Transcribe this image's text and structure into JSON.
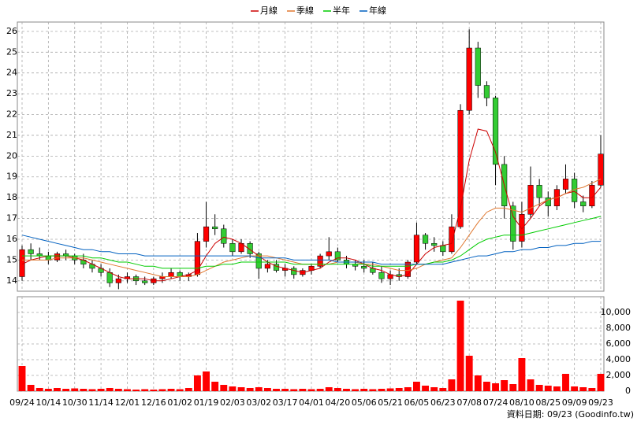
{
  "chart_data": [
    {
      "type": "candlestick",
      "categories": [
        "09/24",
        null,
        null,
        "10/14",
        null,
        null,
        "10/30",
        null,
        null,
        "11/14",
        null,
        null,
        "12/01",
        null,
        null,
        "12/16",
        null,
        null,
        "01/02",
        null,
        null,
        "01/19",
        null,
        null,
        "02/03",
        null,
        null,
        "03/02",
        null,
        null,
        "03/17",
        null,
        null,
        "04/01",
        null,
        null,
        "04/20",
        null,
        null,
        "05/06",
        null,
        null,
        "05/21",
        null,
        null,
        "06/05",
        null,
        null,
        "06/23",
        null,
        null,
        "07/08",
        null,
        null,
        "07/24",
        null,
        null,
        "08/10",
        null,
        null,
        "08/25",
        null,
        null,
        "09/09",
        null,
        null,
        "09/23"
      ],
      "open": [
        14.2,
        15.5,
        15.3,
        15.2,
        15.0,
        15.3,
        15.2,
        15.0,
        14.8,
        14.6,
        14.4,
        13.9,
        14.1,
        14.2,
        14.0,
        13.9,
        14.1,
        14.2,
        14.4,
        14.2,
        14.3,
        15.9,
        16.6,
        16.5,
        15.8,
        15.4,
        15.8,
        15.3,
        14.6,
        14.8,
        14.5,
        14.6,
        14.3,
        14.5,
        14.7,
        15.2,
        15.4,
        15.0,
        14.8,
        14.7,
        14.6,
        14.4,
        14.1,
        14.3,
        14.2,
        14.9,
        16.2,
        15.8,
        15.7,
        15.4,
        16.6,
        22.2,
        25.2,
        23.4,
        22.8,
        19.6,
        17.6,
        15.9,
        17.2,
        18.6,
        18.0,
        17.6,
        18.4,
        18.9,
        17.8,
        17.6,
        18.6
      ],
      "high": [
        15.7,
        15.8,
        15.6,
        15.4,
        15.4,
        15.5,
        15.3,
        15.3,
        15.0,
        14.8,
        14.6,
        14.3,
        14.4,
        14.3,
        14.2,
        14.2,
        14.4,
        14.6,
        14.5,
        14.4,
        16.3,
        17.8,
        17.2,
        16.7,
        16.0,
        16.0,
        15.9,
        15.4,
        15.0,
        15.0,
        14.8,
        14.7,
        14.6,
        14.8,
        15.3,
        16.1,
        15.6,
        15.2,
        15.0,
        15.0,
        14.9,
        14.7,
        14.5,
        14.6,
        15.0,
        16.8,
        16.3,
        16.1,
        15.9,
        17.2,
        22.5,
        26.1,
        25.5,
        23.6,
        22.9,
        20.0,
        17.8,
        17.8,
        19.5,
        18.9,
        18.3,
        18.6,
        19.6,
        19.2,
        18.1,
        18.8,
        21.0
      ],
      "low": [
        14.0,
        15.0,
        15.0,
        14.8,
        14.9,
        15.0,
        14.8,
        14.6,
        14.4,
        14.2,
        13.7,
        13.6,
        13.9,
        13.8,
        13.8,
        13.8,
        13.9,
        14.1,
        14.0,
        14.0,
        14.2,
        15.6,
        16.2,
        15.6,
        15.2,
        15.3,
        15.1,
        14.1,
        14.4,
        14.4,
        14.2,
        14.1,
        14.2,
        14.3,
        14.6,
        15.0,
        14.9,
        14.6,
        14.5,
        14.4,
        14.3,
        13.9,
        13.8,
        14.0,
        14.1,
        14.8,
        15.5,
        15.4,
        15.2,
        15.3,
        16.5,
        22.0,
        22.8,
        22.4,
        18.6,
        17.0,
        15.5,
        15.6,
        17.0,
        17.6,
        17.1,
        17.4,
        18.2,
        17.5,
        17.3,
        17.5,
        18.5
      ],
      "close": [
        15.5,
        15.3,
        15.2,
        15.0,
        15.3,
        15.2,
        15.0,
        14.8,
        14.6,
        14.4,
        13.9,
        14.1,
        14.2,
        14.0,
        13.9,
        14.1,
        14.2,
        14.4,
        14.2,
        14.3,
        15.9,
        16.6,
        16.5,
        15.8,
        15.4,
        15.8,
        15.3,
        14.6,
        14.8,
        14.5,
        14.6,
        14.3,
        14.5,
        14.7,
        15.2,
        15.4,
        15.0,
        14.8,
        14.7,
        14.6,
        14.4,
        14.1,
        14.3,
        14.2,
        14.9,
        16.2,
        15.8,
        15.7,
        15.4,
        16.6,
        22.2,
        25.2,
        23.4,
        22.8,
        19.6,
        17.6,
        15.9,
        17.2,
        18.6,
        18.0,
        17.6,
        18.4,
        18.9,
        17.8,
        17.6,
        18.6,
        20.1
      ],
      "up_color": "#ff0000",
      "down_color": "#33cc33",
      "series": [
        {
          "name": "月線",
          "color": "#cc0000",
          "values": [
            14.8,
            15.0,
            15.1,
            15.2,
            15.2,
            15.2,
            15.1,
            15.0,
            14.8,
            14.6,
            14.4,
            14.2,
            14.1,
            14.1,
            14.1,
            14.0,
            14.0,
            14.1,
            14.2,
            14.3,
            14.5,
            15.2,
            15.8,
            16.1,
            16.0,
            15.8,
            15.5,
            15.2,
            14.9,
            14.7,
            14.6,
            14.5,
            14.4,
            14.5,
            14.6,
            14.9,
            15.1,
            15.1,
            15.0,
            14.8,
            14.6,
            14.5,
            14.3,
            14.2,
            14.3,
            14.8,
            15.3,
            15.6,
            15.7,
            15.8,
            17.5,
            19.8,
            21.3,
            21.2,
            20.2,
            18.6,
            17.1,
            16.5,
            17.0,
            17.6,
            17.9,
            18.0,
            18.2,
            18.3,
            18.0,
            18.0,
            18.5
          ]
        },
        {
          "name": "季線",
          "color": "#e07830",
          "values": [
            15.0,
            15.0,
            15.0,
            15.0,
            15.1,
            15.1,
            15.1,
            15.1,
            15.0,
            14.9,
            14.8,
            14.7,
            14.6,
            14.5,
            14.4,
            14.3,
            14.2,
            14.2,
            14.2,
            14.2,
            14.3,
            14.5,
            14.7,
            14.9,
            15.0,
            15.1,
            15.2,
            15.2,
            15.2,
            15.1,
            15.0,
            14.9,
            14.8,
            14.8,
            14.8,
            14.8,
            14.9,
            14.9,
            14.9,
            14.8,
            14.8,
            14.7,
            14.6,
            14.5,
            14.5,
            14.6,
            14.8,
            14.9,
            15.0,
            15.1,
            15.6,
            16.2,
            16.8,
            17.3,
            17.5,
            17.5,
            17.4,
            17.3,
            17.5,
            17.7,
            17.9,
            18.0,
            18.2,
            18.4,
            18.5,
            18.7,
            18.9
          ]
        },
        {
          "name": "半年",
          "color": "#00cc00",
          "values": [
            15.2,
            15.2,
            15.2,
            15.2,
            15.2,
            15.2,
            15.2,
            15.2,
            15.1,
            15.1,
            15.0,
            14.9,
            14.9,
            14.8,
            14.7,
            14.7,
            14.6,
            14.6,
            14.6,
            14.6,
            14.6,
            14.7,
            14.7,
            14.8,
            14.8,
            14.9,
            14.9,
            14.9,
            14.9,
            14.9,
            14.9,
            14.8,
            14.8,
            14.8,
            14.8,
            14.8,
            14.8,
            14.8,
            14.8,
            14.8,
            14.7,
            14.7,
            14.7,
            14.7,
            14.7,
            14.8,
            14.8,
            14.9,
            14.9,
            15.0,
            15.2,
            15.5,
            15.8,
            16.0,
            16.1,
            16.2,
            16.2,
            16.2,
            16.3,
            16.4,
            16.5,
            16.6,
            16.7,
            16.8,
            16.9,
            17.0,
            17.1
          ]
        },
        {
          "name": "年線",
          "color": "#0060c0",
          "values": [
            16.2,
            16.1,
            16.0,
            15.9,
            15.8,
            15.7,
            15.6,
            15.5,
            15.5,
            15.4,
            15.4,
            15.3,
            15.3,
            15.3,
            15.2,
            15.2,
            15.2,
            15.2,
            15.2,
            15.2,
            15.2,
            15.2,
            15.2,
            15.2,
            15.2,
            15.2,
            15.2,
            15.1,
            15.1,
            15.1,
            15.1,
            15.0,
            15.0,
            15.0,
            15.0,
            15.0,
            14.9,
            14.9,
            14.9,
            14.9,
            14.9,
            14.8,
            14.8,
            14.8,
            14.8,
            14.8,
            14.8,
            14.8,
            14.8,
            14.9,
            15.0,
            15.1,
            15.2,
            15.2,
            15.3,
            15.4,
            15.4,
            15.5,
            15.5,
            15.6,
            15.6,
            15.7,
            15.7,
            15.8,
            15.8,
            15.9,
            15.9
          ]
        }
      ],
      "ylim": [
        13.5,
        26.45
      ],
      "yticks": [
        14,
        15,
        16,
        17,
        18,
        19,
        20,
        21,
        22,
        23,
        24,
        25,
        26
      ],
      "grid": true
    },
    {
      "type": "bar",
      "color": "#ff0000",
      "values": [
        3200,
        800,
        400,
        300,
        400,
        300,
        350,
        300,
        250,
        300,
        400,
        300,
        250,
        200,
        250,
        200,
        250,
        300,
        250,
        400,
        2000,
        2500,
        1200,
        800,
        600,
        500,
        400,
        500,
        400,
        300,
        300,
        250,
        300,
        250,
        300,
        500,
        400,
        300,
        250,
        300,
        250,
        300,
        350,
        400,
        500,
        1200,
        700,
        500,
        400,
        1500,
        11500,
        4500,
        2000,
        1200,
        1000,
        1400,
        900,
        4200,
        1500,
        800,
        700,
        600,
        2200,
        600,
        500,
        400,
        2200
      ],
      "ylim": [
        0,
        12000
      ],
      "yticks": [
        0,
        {
          "value": 2000,
          "label": "2,000"
        },
        {
          "value": 4000,
          "label": "4,000"
        },
        {
          "value": 6000,
          "label": "6,000"
        },
        {
          "value": 8000,
          "label": "8,000"
        },
        {
          "value": 10000,
          "label": "10,000"
        }
      ],
      "grid": true
    }
  ],
  "footer": "資料日期: 09/23 (Goodinfo.tw)"
}
